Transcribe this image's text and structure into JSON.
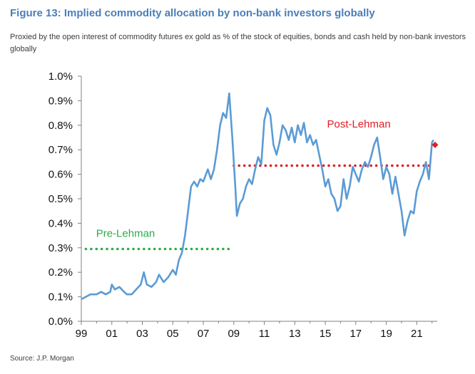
{
  "figure": {
    "title": "Figure 13: Implied commodity allocation by non-bank investors globally",
    "subtitle": "Proxied by the open interest of commodity futures ex gold as % of the stock of equities, bonds and cash held by non-bank investors globally",
    "source": "Source: J.P. Morgan"
  },
  "colors": {
    "title": "#4a7eb8",
    "series": "#5b9bd5",
    "pre_lehman": "#2eaa4f",
    "post_lehman": "#e31b23"
  },
  "chart_data": {
    "type": "line",
    "title": "",
    "xlabel": "",
    "ylabel": "",
    "xlim": [
      1999,
      2022.2
    ],
    "ylim": [
      0,
      1.0
    ],
    "grid": false,
    "legend": "none",
    "x_ticks": [
      "99",
      "01",
      "03",
      "05",
      "07",
      "09",
      "11",
      "13",
      "15",
      "17",
      "19",
      "21"
    ],
    "y_ticks": [
      "0.0%",
      "0.1%",
      "0.2%",
      "0.3%",
      "0.4%",
      "0.5%",
      "0.6%",
      "0.7%",
      "0.8%",
      "0.9%",
      "1.0%"
    ],
    "series": [
      {
        "values": [
          [
            1999.0,
            0.09
          ],
          [
            1999.3,
            0.1
          ],
          [
            1999.6,
            0.11
          ],
          [
            2000.0,
            0.11
          ],
          [
            2000.3,
            0.12
          ],
          [
            2000.6,
            0.11
          ],
          [
            2000.9,
            0.12
          ],
          [
            2001.0,
            0.15
          ],
          [
            2001.2,
            0.13
          ],
          [
            2001.5,
            0.14
          ],
          [
            2001.8,
            0.12
          ],
          [
            2002.0,
            0.11
          ],
          [
            2002.3,
            0.11
          ],
          [
            2002.6,
            0.13
          ],
          [
            2002.9,
            0.15
          ],
          [
            2003.1,
            0.2
          ],
          [
            2003.3,
            0.15
          ],
          [
            2003.6,
            0.14
          ],
          [
            2003.9,
            0.16
          ],
          [
            2004.1,
            0.19
          ],
          [
            2004.4,
            0.16
          ],
          [
            2004.7,
            0.18
          ],
          [
            2005.0,
            0.21
          ],
          [
            2005.2,
            0.19
          ],
          [
            2005.4,
            0.25
          ],
          [
            2005.6,
            0.28
          ],
          [
            2005.8,
            0.35
          ],
          [
            2006.0,
            0.45
          ],
          [
            2006.2,
            0.55
          ],
          [
            2006.4,
            0.57
          ],
          [
            2006.6,
            0.55
          ],
          [
            2006.8,
            0.58
          ],
          [
            2007.0,
            0.57
          ],
          [
            2007.3,
            0.62
          ],
          [
            2007.5,
            0.58
          ],
          [
            2007.7,
            0.62
          ],
          [
            2007.9,
            0.7
          ],
          [
            2008.1,
            0.8
          ],
          [
            2008.3,
            0.85
          ],
          [
            2008.5,
            0.83
          ],
          [
            2008.7,
            0.93
          ],
          [
            2008.9,
            0.75
          ],
          [
            2009.1,
            0.55
          ],
          [
            2009.2,
            0.43
          ],
          [
            2009.4,
            0.48
          ],
          [
            2009.6,
            0.5
          ],
          [
            2009.8,
            0.55
          ],
          [
            2010.0,
            0.58
          ],
          [
            2010.2,
            0.56
          ],
          [
            2010.4,
            0.62
          ],
          [
            2010.6,
            0.67
          ],
          [
            2010.8,
            0.64
          ],
          [
            2011.0,
            0.82
          ],
          [
            2011.2,
            0.87
          ],
          [
            2011.4,
            0.84
          ],
          [
            2011.6,
            0.72
          ],
          [
            2011.8,
            0.68
          ],
          [
            2012.0,
            0.73
          ],
          [
            2012.2,
            0.8
          ],
          [
            2012.4,
            0.78
          ],
          [
            2012.6,
            0.74
          ],
          [
            2012.8,
            0.79
          ],
          [
            2013.0,
            0.73
          ],
          [
            2013.2,
            0.8
          ],
          [
            2013.4,
            0.76
          ],
          [
            2013.6,
            0.81
          ],
          [
            2013.8,
            0.73
          ],
          [
            2014.0,
            0.76
          ],
          [
            2014.2,
            0.72
          ],
          [
            2014.4,
            0.74
          ],
          [
            2014.6,
            0.68
          ],
          [
            2014.8,
            0.62
          ],
          [
            2015.0,
            0.55
          ],
          [
            2015.2,
            0.58
          ],
          [
            2015.4,
            0.52
          ],
          [
            2015.6,
            0.5
          ],
          [
            2015.8,
            0.45
          ],
          [
            2016.0,
            0.47
          ],
          [
            2016.2,
            0.58
          ],
          [
            2016.4,
            0.5
          ],
          [
            2016.6,
            0.55
          ],
          [
            2016.8,
            0.63
          ],
          [
            2017.0,
            0.6
          ],
          [
            2017.2,
            0.57
          ],
          [
            2017.4,
            0.62
          ],
          [
            2017.6,
            0.65
          ],
          [
            2017.8,
            0.63
          ],
          [
            2018.0,
            0.67
          ],
          [
            2018.2,
            0.72
          ],
          [
            2018.4,
            0.75
          ],
          [
            2018.6,
            0.67
          ],
          [
            2018.8,
            0.58
          ],
          [
            2019.0,
            0.63
          ],
          [
            2019.2,
            0.6
          ],
          [
            2019.4,
            0.52
          ],
          [
            2019.6,
            0.59
          ],
          [
            2019.8,
            0.52
          ],
          [
            2020.0,
            0.45
          ],
          [
            2020.2,
            0.35
          ],
          [
            2020.4,
            0.41
          ],
          [
            2020.6,
            0.45
          ],
          [
            2020.8,
            0.44
          ],
          [
            2021.0,
            0.53
          ],
          [
            2021.2,
            0.57
          ],
          [
            2021.4,
            0.6
          ],
          [
            2021.6,
            0.65
          ],
          [
            2021.8,
            0.58
          ],
          [
            2022.0,
            0.73
          ],
          [
            2022.1,
            0.74
          ]
        ]
      }
    ],
    "markers": [
      {
        "x": 2022.2,
        "y": 0.72
      }
    ],
    "reference_lines": [
      {
        "label": "Pre-Lehman",
        "x_start": 1999.3,
        "x_end": 2008.9,
        "y": 0.295,
        "label_x": 2001.9,
        "label_y": 0.345
      },
      {
        "label": "Post-Lehman",
        "x_start": 2009.0,
        "x_end": 2022.0,
        "y": 0.635,
        "label_x": 2017.2,
        "label_y": 0.79
      }
    ]
  }
}
